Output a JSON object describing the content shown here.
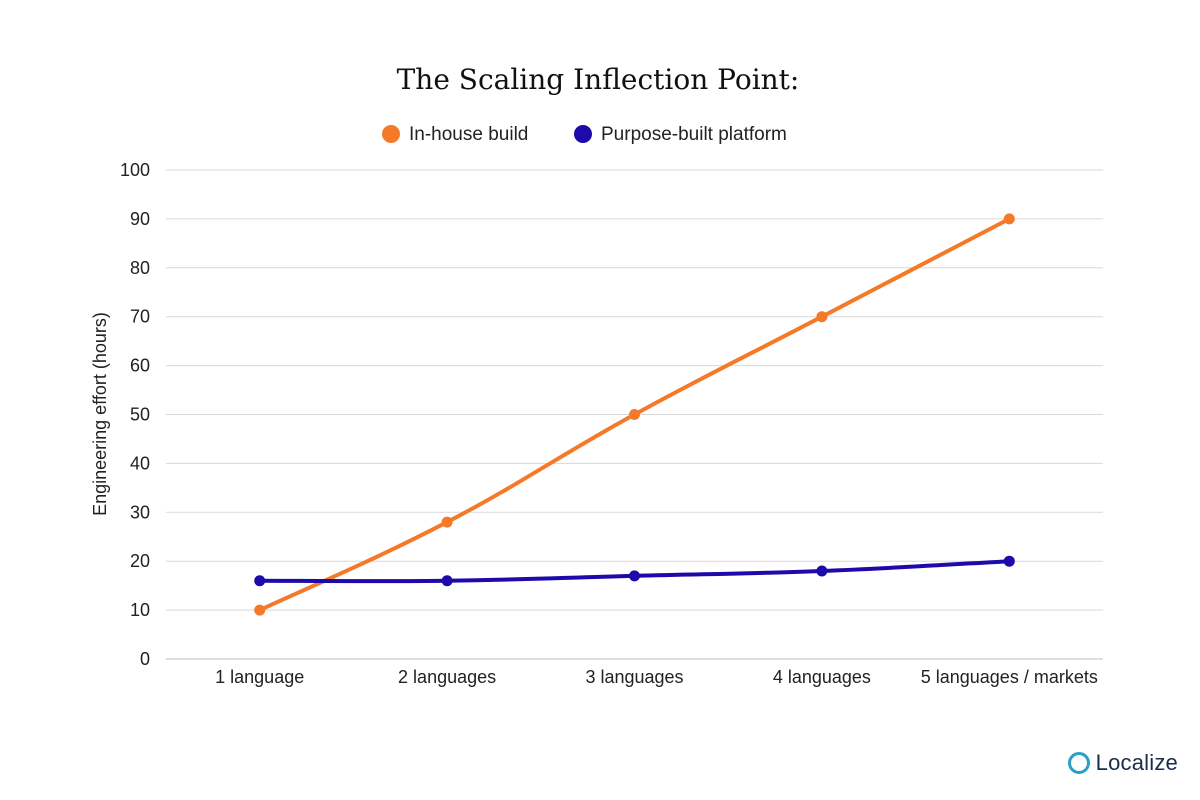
{
  "chart_data": {
    "type": "line",
    "title": "The Scaling Inflection Point:",
    "xlabel": "",
    "ylabel": "Engineering effort (hours)",
    "ylim": [
      0,
      100
    ],
    "yticks": [
      0,
      10,
      20,
      30,
      40,
      50,
      60,
      70,
      80,
      90,
      100
    ],
    "categories": [
      "1 language",
      "2 languages",
      "3 languages",
      "4 languages",
      "5 languages / markets"
    ],
    "series": [
      {
        "name": "In-house build",
        "color": "#f47a2a",
        "values": [
          10,
          28,
          50,
          70,
          90
        ]
      },
      {
        "name": "Purpose-built platform",
        "color": "#1d0aa8",
        "values": [
          16,
          16,
          17,
          18,
          20
        ]
      }
    ],
    "grid": true,
    "legend_position": "top-center"
  },
  "logo": {
    "text": "Localize",
    "icon": "ring-icon",
    "color": "#2a9fc7"
  }
}
